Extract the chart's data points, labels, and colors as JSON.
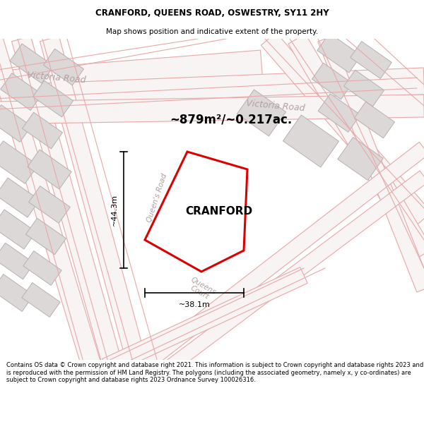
{
  "title_line1": "CRANFORD, QUEENS ROAD, OSWESTRY, SY11 2HY",
  "title_line2": "Map shows position and indicative extent of the property.",
  "area_text": "~879m²/~0.217ac.",
  "property_name": "CRANFORD",
  "dim1_label": "~44.3m",
  "dim2_label": "~38.1m",
  "footer_text": "Contains OS data © Crown copyright and database right 2021. This information is subject to Crown copyright and database rights 2023 and is reproduced with the permission of HM Land Registry. The polygons (including the associated geometry, namely x, y co-ordinates) are subject to Crown copyright and database rights 2023 Ordnance Survey 100026316.",
  "map_bg": "#eeecec",
  "road_line_color": "#e8a8a8",
  "building_fill": "#ddd8d8",
  "building_edge": "#b8b0b0",
  "road_fill": "#f8f4f4",
  "plot_fill": "#ffffff",
  "plot_edge": "#dd0000",
  "road_label_color": "#b0a0a0",
  "title_color": "black",
  "footer_bg": "#ffffff",
  "title_bg": "#ffffff"
}
